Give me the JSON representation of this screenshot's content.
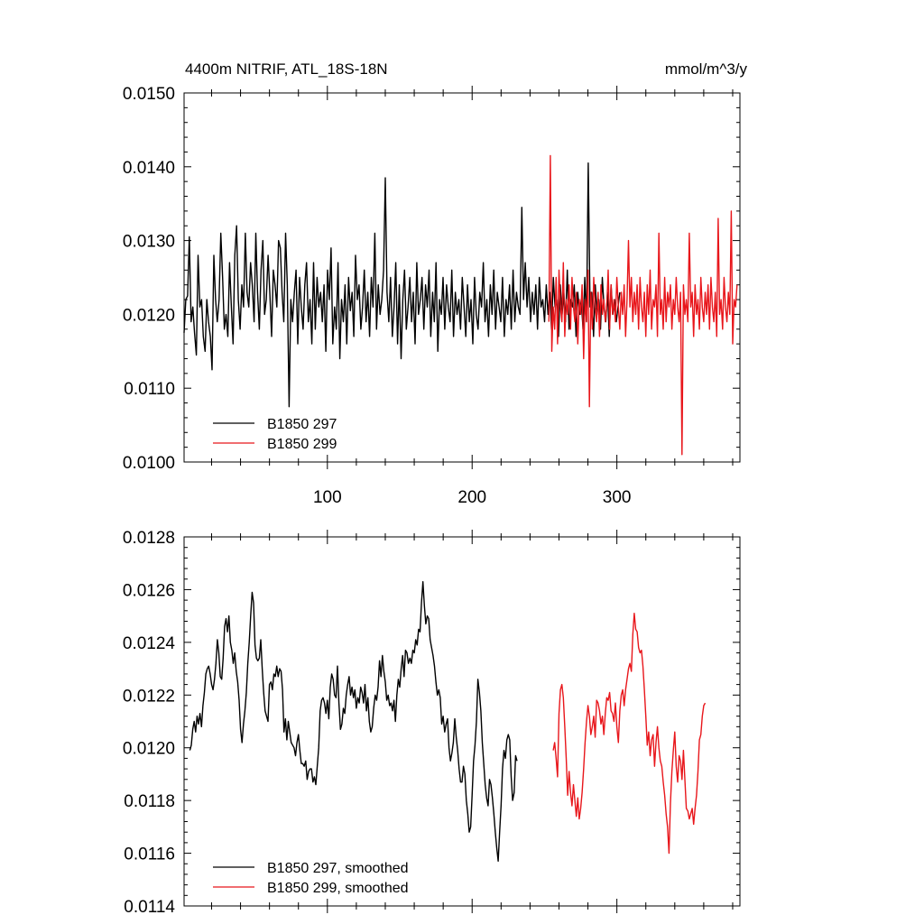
{
  "chart_data": [
    {
      "type": "line",
      "title": "4400m NITRIF, ATL_18S-18N",
      "units": "mmol/m^3/y",
      "xlim": [
        1,
        385
      ],
      "ylim": [
        0.01,
        0.015
      ],
      "x_ticks": [
        100,
        200,
        300
      ],
      "y_ticks": [
        "0.0100",
        "0.0110",
        "0.0120",
        "0.0130",
        "0.0140",
        "0.0150"
      ],
      "legend_position": "bottom-left",
      "grid": false,
      "series": [
        {
          "name": "B1850 297",
          "color": "#000000",
          "x_start": 1,
          "values": [
            0.01175,
            0.0122,
            0.01225,
            0.01305,
            0.0119,
            0.0121,
            0.01175,
            0.01145,
            0.0128,
            0.0121,
            0.0122,
            0.0117,
            0.0115,
            0.0122,
            0.0119,
            0.0117,
            0.01125,
            0.0128,
            0.0122,
            0.0119,
            0.0122,
            0.0131,
            0.0125,
            0.0118,
            0.012,
            0.0117,
            0.0127,
            0.0121,
            0.0116,
            0.0128,
            0.0132,
            0.0122,
            0.0118,
            0.0124,
            0.0121,
            0.0131,
            0.0123,
            0.0121,
            0.0127,
            0.0124,
            0.0119,
            0.0131,
            0.0123,
            0.0118,
            0.0126,
            0.013,
            0.012,
            0.0122,
            0.0128,
            0.0123,
            0.0117,
            0.0126,
            0.0124,
            0.0121,
            0.013,
            0.0129,
            0.0123,
            0.0119,
            0.0131,
            0.0124,
            0.01075,
            0.0122,
            0.0119,
            0.0123,
            0.0126,
            0.0116,
            0.0125,
            0.0121,
            0.0118,
            0.0124,
            0.0127,
            0.0119,
            0.0122,
            0.0116,
            0.0127,
            0.0118,
            0.0125,
            0.0121,
            0.0123,
            0.0119,
            0.0124,
            0.0115,
            0.0126,
            0.0122,
            0.0129,
            0.0116,
            0.0121,
            0.0118,
            0.0127,
            0.0114,
            0.0122,
            0.0119,
            0.0124,
            0.0116,
            0.0125,
            0.01205,
            0.0123,
            0.0117,
            0.0128,
            0.0122,
            0.0124,
            0.0118,
            0.0121,
            0.0126,
            0.0119,
            0.0123,
            0.0117,
            0.0125,
            0.0121,
            0.0131,
            0.0118,
            0.0124,
            0.012,
            0.0122,
            0.0126,
            0.01385,
            0.0123,
            0.0119,
            0.0125,
            0.0117,
            0.0121,
            0.0127,
            0.0116,
            0.0124,
            0.0114,
            0.0122,
            0.0126,
            0.0118,
            0.0121,
            0.0125,
            0.0119,
            0.0123,
            0.0116,
            0.0127,
            0.012,
            0.0122,
            0.0125,
            0.0118,
            0.0124,
            0.0121,
            0.0126,
            0.0117,
            0.0123,
            0.0119,
            0.0127,
            0.0115,
            0.0122,
            0.012,
            0.0125,
            0.0118,
            0.0124,
            0.0121,
            0.0119,
            0.0126,
            0.0117,
            0.0123,
            0.012,
            0.0122,
            0.0118,
            0.0125,
            0.0121,
            0.0117,
            0.0124,
            0.0119,
            0.0122,
            0.0116,
            0.0125,
            0.012,
            0.0118,
            0.0123,
            0.0121,
            0.0127,
            0.0119,
            0.0122,
            0.0117,
            0.0124,
            0.012,
            0.0126,
            0.0118,
            0.0123,
            0.0121,
            0.0119,
            0.0125,
            0.0117,
            0.0122,
            0.012,
            0.0124,
            0.0118,
            0.0126,
            0.0119,
            0.0123,
            0.0121,
            0.012,
            0.01345,
            0.0122,
            0.0127,
            0.0121,
            0.0125,
            0.0119,
            0.0123,
            0.012,
            0.0124,
            0.0118,
            0.0125,
            0.0121,
            0.0122,
            0.0119,
            0.0124,
            0.012,
            0.0123,
            0.0118,
            0.0125,
            0.0121,
            0.0122,
            0.0117,
            0.0124,
            0.012,
            0.0123,
            0.0119,
            0.0126,
            0.0118,
            0.0122,
            0.0121,
            0.0124,
            0.0117,
            0.0123,
            0.012,
            0.0122,
            0.0118,
            0.0125,
            0.0119,
            0.01405,
            0.0121,
            0.0123,
            0.0117,
            0.0124,
            0.012,
            0.0122,
            0.0118,
            0.0125,
            0.0121,
            0.0119,
            0.0123,
            0.0117,
            0.0124,
            0.012,
            0.0122,
            0.0119,
            0.0121,
            0.0123
          ],
          "note_x_end": 302
        },
        {
          "name": "B1850 299",
          "color": "#e8161b",
          "x_start": 253,
          "values": [
            0.0119,
            0.01415,
            0.0115,
            0.0121,
            0.0118,
            0.0125,
            0.0116,
            0.0126,
            0.0121,
            0.0119,
            0.0127,
            0.0117,
            0.0122,
            0.012,
            0.0124,
            0.0118,
            0.0125,
            0.0121,
            0.0119,
            0.0123,
            0.0116,
            0.0122,
            0.012,
            0.0124,
            0.0114,
            0.0122,
            0.0119,
            0.0126,
            0.01075,
            0.0123,
            0.0118,
            0.0125,
            0.0121,
            0.0119,
            0.0123,
            0.0117,
            0.0124,
            0.012,
            0.0122,
            0.0119,
            0.0121,
            0.0126,
            0.0118,
            0.0124,
            0.012,
            0.0122,
            0.0119,
            0.0125,
            0.0121,
            0.0118,
            0.0123,
            0.012,
            0.0124,
            0.0117,
            0.0122,
            0.013,
            0.0121,
            0.0125,
            0.0119,
            0.0123,
            0.012,
            0.0124,
            0.0118,
            0.0125,
            0.0121,
            0.0119,
            0.0123,
            0.0117,
            0.0124,
            0.012,
            0.0126,
            0.0118,
            0.0122,
            0.0121,
            0.0124,
            0.0117,
            0.0131,
            0.012,
            0.0122,
            0.0118,
            0.0125,
            0.0119,
            0.0123,
            0.0121,
            0.0124,
            0.0118,
            0.0122,
            0.012,
            0.0125,
            0.0121,
            0.0119,
            0.0123,
            0.0101,
            0.0124,
            0.012,
            0.0122,
            0.0119,
            0.0131,
            0.0121,
            0.0123,
            0.0117,
            0.0124,
            0.012,
            0.0122,
            0.0118,
            0.0125,
            0.0121,
            0.0119,
            0.0123,
            0.012,
            0.0124,
            0.0118,
            0.0125,
            0.0121,
            0.0119,
            0.0123,
            0.0117,
            0.0133,
            0.012,
            0.0122,
            0.0118,
            0.0125,
            0.0121,
            0.0119,
            0.0123,
            0.012,
            0.0134,
            0.0116,
            0.0122,
            0.0121,
            0.0124
          ]
        }
      ]
    },
    {
      "type": "line",
      "title": "",
      "units": "",
      "xlim": [
        1,
        385
      ],
      "ylim": [
        0.0114,
        0.0128
      ],
      "x_ticks": [
        100,
        200,
        300
      ],
      "y_ticks": [
        "0.0114",
        "0.0116",
        "0.0118",
        "0.0120",
        "0.0122",
        "0.0124",
        "0.0126",
        "0.0128"
      ],
      "legend_position": "bottom-left",
      "grid": false,
      "series": [
        {
          "name": "B1850 297, smoothed",
          "color": "#000000",
          "x_start": 5,
          "values": [
            0.01199,
            0.01201,
            0.01207,
            0.0121,
            0.01206,
            0.01212,
            0.01209,
            0.01213,
            0.01208,
            0.01216,
            0.01221,
            0.01228,
            0.0123,
            0.01231,
            0.01228,
            0.01224,
            0.01222,
            0.01226,
            0.01232,
            0.01241,
            0.01236,
            0.01227,
            0.01226,
            0.01234,
            0.01246,
            0.01249,
            0.01244,
            0.0125,
            0.0124,
            0.01237,
            0.01232,
            0.01236,
            0.01229,
            0.01225,
            0.01218,
            0.01207,
            0.01202,
            0.01209,
            0.01214,
            0.01221,
            0.01232,
            0.0124,
            0.0125,
            0.01259,
            0.01255,
            0.01239,
            0.01234,
            0.01233,
            0.01234,
            0.01241,
            0.0123,
            0.01221,
            0.01214,
            0.01212,
            0.0121,
            0.01224,
            0.01225,
            0.01222,
            0.01228,
            0.01227,
            0.01231,
            0.01227,
            0.0123,
            0.01229,
            0.01222,
            0.01206,
            0.01211,
            0.01203,
            0.0121,
            0.01206,
            0.01202,
            0.01201,
            0.012,
            0.01197,
            0.01202,
            0.01205,
            0.01199,
            0.01194,
            0.01194,
            0.01193,
            0.01195,
            0.01188,
            0.01191,
            0.01192,
            0.01192,
            0.01187,
            0.01189,
            0.01186,
            0.01193,
            0.012,
            0.01214,
            0.01218,
            0.01219,
            0.01217,
            0.01213,
            0.01218,
            0.01211,
            0.01223,
            0.01228,
            0.01226,
            0.0122,
            0.01219,
            0.01231,
            0.01217,
            0.01207,
            0.01209,
            0.01215,
            0.01213,
            0.0122,
            0.01224,
            0.01227,
            0.0122,
            0.01223,
            0.01219,
            0.01222,
            0.01215,
            0.01219,
            0.01217,
            0.01223,
            0.01221,
            0.01217,
            0.01224,
            0.01214,
            0.01219,
            0.0121,
            0.01206,
            0.01208,
            0.01215,
            0.0122,
            0.01218,
            0.01223,
            0.01233,
            0.01227,
            0.01235,
            0.01229,
            0.01225,
            0.01218,
            0.0122,
            0.01216,
            0.01217,
            0.01214,
            0.01218,
            0.0121,
            0.0122,
            0.01226,
            0.01223,
            0.0123,
            0.01235,
            0.01227,
            0.01237,
            0.01236,
            0.01232,
            0.01234,
            0.01232,
            0.01237,
            0.01236,
            0.01241,
            0.01239,
            0.01245,
            0.01244,
            0.01255,
            0.01263,
            0.01254,
            0.01247,
            0.0125,
            0.01249,
            0.01241,
            0.01238,
            0.01235,
            0.01231,
            0.01225,
            0.0122,
            0.01222,
            0.01219,
            0.01209,
            0.01212,
            0.01206,
            0.01209,
            0.01211,
            0.012,
            0.01195,
            0.01198,
            0.01202,
            0.01211,
            0.01204,
            0.01199,
            0.01192,
            0.01187,
            0.01187,
            0.01193,
            0.0119,
            0.0118,
            0.01175,
            0.01168,
            0.0117,
            0.01182,
            0.01195,
            0.01201,
            0.0121,
            0.01226,
            0.01221,
            0.01214,
            0.01202,
            0.01194,
            0.01186,
            0.01181,
            0.01178,
            0.01188,
            0.01186,
            0.01181,
            0.01175,
            0.01168,
            0.01162,
            0.01157,
            0.01168,
            0.01178,
            0.01192,
            0.01199,
            0.01196,
            0.01203,
            0.01205,
            0.01203,
            0.01189,
            0.0118,
            0.01183,
            0.01197,
            0.01195
          ]
        },
        {
          "name": "B1850 299, smoothed",
          "color": "#e8161b",
          "x_start": 256,
          "values": [
            0.01199,
            0.01202,
            0.01196,
            0.01189,
            0.01213,
            0.01222,
            0.01224,
            0.01219,
            0.01208,
            0.01196,
            0.01182,
            0.01191,
            0.01183,
            0.01178,
            0.01186,
            0.0118,
            0.01174,
            0.01181,
            0.01173,
            0.01177,
            0.01183,
            0.01192,
            0.01202,
            0.0121,
            0.01216,
            0.01212,
            0.01205,
            0.01208,
            0.01212,
            0.01204,
            0.01218,
            0.01217,
            0.01214,
            0.01209,
            0.01212,
            0.01205,
            0.01213,
            0.01219,
            0.01218,
            0.01221,
            0.01214,
            0.01213,
            0.0121,
            0.01217,
            0.01208,
            0.01202,
            0.01214,
            0.0122,
            0.01222,
            0.01216,
            0.01222,
            0.01226,
            0.0123,
            0.01232,
            0.01229,
            0.01243,
            0.01251,
            0.01245,
            0.01244,
            0.01238,
            0.01236,
            0.01237,
            0.01231,
            0.01222,
            0.01212,
            0.01201,
            0.01206,
            0.01197,
            0.01203,
            0.01205,
            0.01193,
            0.01202,
            0.01208,
            0.012,
            0.01195,
            0.01193,
            0.01187,
            0.01182,
            0.01175,
            0.0117,
            0.0116,
            0.01179,
            0.01191,
            0.01199,
            0.01206,
            0.01193,
            0.01187,
            0.01197,
            0.01195,
            0.01188,
            0.01199,
            0.01188,
            0.01177,
            0.01176,
            0.01173,
            0.01175,
            0.01177,
            0.01171,
            0.01177,
            0.01182,
            0.01191,
            0.01203,
            0.01205,
            0.01212,
            0.01216,
            0.01217
          ]
        }
      ]
    }
  ]
}
